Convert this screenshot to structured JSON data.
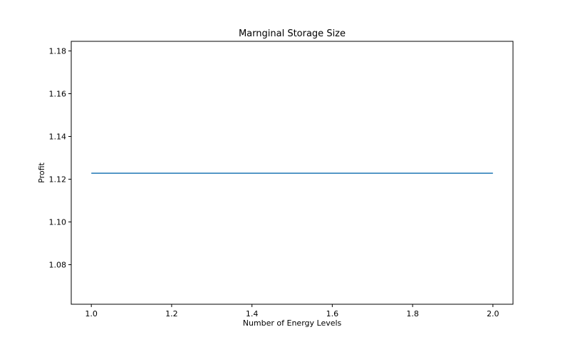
{
  "chart_data": {
    "type": "line",
    "title": "Marnginal Storage Size",
    "xlabel": "Number of Energy Levels",
    "ylabel": "Profit",
    "xlim": [
      0.95,
      2.05
    ],
    "ylim": [
      1.0615,
      1.1845
    ],
    "x_ticks": [
      1.0,
      1.2,
      1.4,
      1.6,
      1.8,
      2.0
    ],
    "x_tick_labels": [
      "1.0",
      "1.2",
      "1.4",
      "1.6",
      "1.8",
      "2.0"
    ],
    "y_ticks": [
      1.08,
      1.1,
      1.12,
      1.14,
      1.16,
      1.18
    ],
    "y_tick_labels": [
      "1.08",
      "1.10",
      "1.12",
      "1.14",
      "1.16",
      "1.18"
    ],
    "grid": false,
    "series": [
      {
        "x": [
          1.0,
          2.0
        ],
        "y": [
          1.1228,
          1.1228
        ],
        "color": "#1f77b4"
      }
    ]
  }
}
